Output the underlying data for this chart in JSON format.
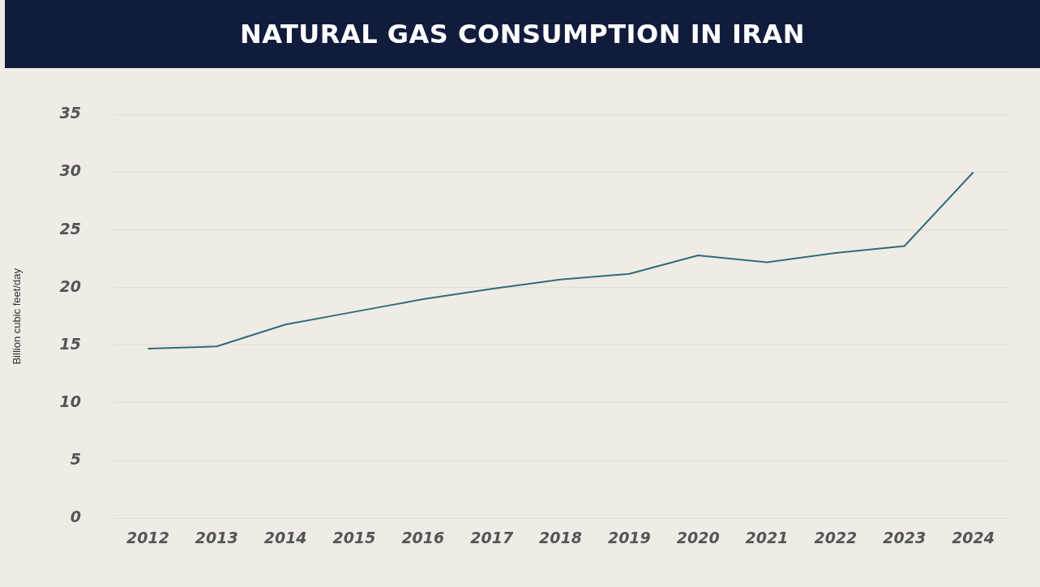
{
  "chart_data": {
    "type": "line",
    "title": "NATURAL GAS CONSUMPTION IN IRAN",
    "ylabel": "Billion cubic feet/day",
    "categories": [
      "2012",
      "2013",
      "2014",
      "2015",
      "2016",
      "2017",
      "2018",
      "2019",
      "2020",
      "2021",
      "2022",
      "2023",
      "2024"
    ],
    "series": [
      {
        "color": "#2f6b7e",
        "values": [
          14.7,
          14.9,
          16.8,
          17.9,
          19.0,
          19.9,
          20.7,
          21.2,
          22.8,
          22.2,
          23.0,
          23.6,
          30.0
        ]
      }
    ],
    "ylim": [
      0,
      35
    ],
    "yticks": [
      0,
      5,
      10,
      15,
      20,
      25,
      30,
      35
    ],
    "grid": "y",
    "legend": false,
    "marker": "none",
    "line_style": "solid"
  }
}
